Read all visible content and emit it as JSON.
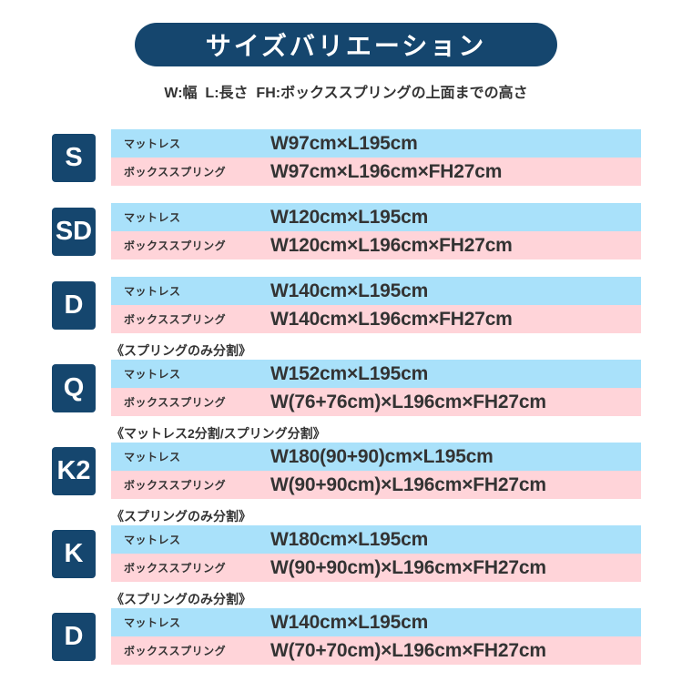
{
  "title": "サイズバリエーション",
  "legend": "W:幅  L:長さ  FH:ボックススプリングの上面までの高さ",
  "labels": {
    "mattress": "マットレス",
    "boxspring": "ボックススプリング"
  },
  "colors": {
    "navy": "#15466e",
    "light_blue": "#a9e1fa",
    "pink": "#ffd4d9",
    "text": "#333333",
    "white": "#ffffff"
  },
  "rows": [
    {
      "size": "S",
      "note": "",
      "mattress": "W97cm×L195cm",
      "boxspring": "W97cm×L196cm×FH27cm"
    },
    {
      "size": "SD",
      "note": "",
      "mattress": "W120cm×L195cm",
      "boxspring": "W120cm×L196cm×FH27cm"
    },
    {
      "size": "D",
      "note": "",
      "mattress": "W140cm×L195cm",
      "boxspring": "W140cm×L196cm×FH27cm"
    },
    {
      "size": "Q",
      "note": "《スプリングのみ分割》",
      "mattress": "W152cm×L195cm",
      "boxspring": "W(76+76cm)×L196cm×FH27cm"
    },
    {
      "size": "K2",
      "note": "《マットレス2分割/スプリング分割》",
      "mattress": "W180(90+90)cm×L195cm",
      "boxspring": "W(90+90cm)×L196cm×FH27cm"
    },
    {
      "size": "K",
      "note": "《スプリングのみ分割》",
      "mattress": "W180cm×L195cm",
      "boxspring": "W(90+90cm)×L196cm×FH27cm"
    },
    {
      "size": "D",
      "note": "《スプリングのみ分割》",
      "mattress": "W140cm×L195cm",
      "boxspring": "W(70+70cm)×L196cm×FH27cm"
    }
  ]
}
